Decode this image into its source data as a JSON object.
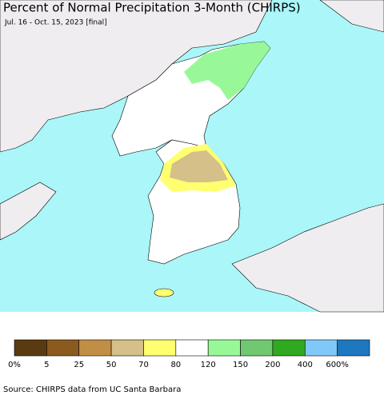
{
  "header": {
    "title": "Percent of Normal Precipitation 3-Month (CHIRPS)",
    "subtitle": "Jul. 16 - Oct. 15, 2023 [final]"
  },
  "legend": {
    "colors": [
      "#5a3a10",
      "#8b5a1e",
      "#c08e44",
      "#d4c088",
      "#ffff70",
      "#ffffff",
      "#98f898",
      "#70c870",
      "#30a820",
      "#80c8f8",
      "#1e78c0"
    ],
    "labels": [
      "0%",
      "5",
      "25",
      "50",
      "70",
      "80",
      "120",
      "150",
      "200",
      "400",
      "600%"
    ]
  },
  "source": "Source: CHIRPS data from UC Santa Barbara"
}
